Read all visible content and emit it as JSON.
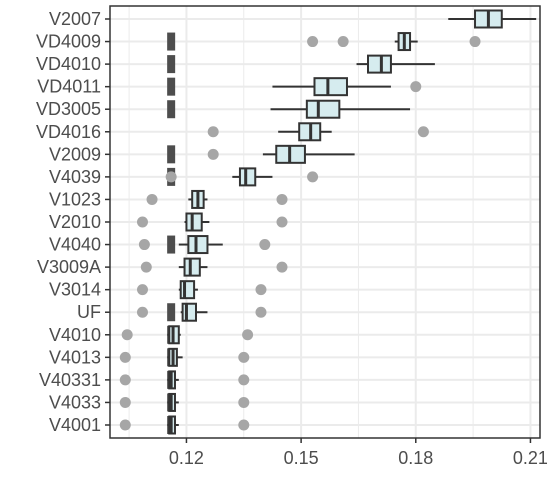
{
  "chart_data": {
    "type": "box",
    "title": "",
    "xlabel": "",
    "ylabel": "",
    "xlim": [
      0.1,
      0.2125
    ],
    "xticks": [
      0.12,
      0.15,
      0.18,
      0.21
    ],
    "xtick_labels": [
      "0.12",
      "0.15",
      "0.18",
      "0.21"
    ],
    "grid": true,
    "legend": "none",
    "colors": {
      "box_fill": "#d6ecef",
      "box_stroke": "#333333",
      "outlier": "#a6a6a6",
      "reference_bar": "#4d4d4d",
      "grid": "#ebebeb",
      "panel_border": "#333333"
    },
    "categories": [
      "V2007",
      "VD4009",
      "VD4010",
      "VD4011",
      "VD3005",
      "VD4016",
      "V2009",
      "V4039",
      "V1023",
      "V2010",
      "V4040",
      "V3009A",
      "V3014",
      "UF",
      "V4010",
      "V4013",
      "V40331",
      "V4033",
      "V4001"
    ],
    "boxes": [
      {
        "label": "V2007",
        "whisker_low": 0.1885,
        "q1": 0.1955,
        "median": 0.199,
        "q3": 0.2025,
        "whisker_high": 0.2115,
        "outliers": []
      },
      {
        "label": "VD4009",
        "whisker_low": 0.1745,
        "q1": 0.1755,
        "median": 0.177,
        "q3": 0.1785,
        "whisker_high": 0.1805,
        "outliers": [
          0.153,
          0.161,
          0.1955
        ]
      },
      {
        "label": "VD4010",
        "whisker_low": 0.1645,
        "q1": 0.1675,
        "median": 0.171,
        "q3": 0.1735,
        "whisker_high": 0.185,
        "outliers": []
      },
      {
        "label": "VD4011",
        "whisker_low": 0.1425,
        "q1": 0.1535,
        "median": 0.157,
        "q3": 0.162,
        "whisker_high": 0.1735,
        "outliers": [
          0.18
        ]
      },
      {
        "label": "VD3005",
        "whisker_low": 0.142,
        "q1": 0.1515,
        "median": 0.1545,
        "q3": 0.16,
        "whisker_high": 0.1785,
        "outliers": []
      },
      {
        "label": "VD4016",
        "whisker_low": 0.144,
        "q1": 0.1495,
        "median": 0.1525,
        "q3": 0.155,
        "whisker_high": 0.158,
        "outliers": [
          0.127,
          0.182
        ]
      },
      {
        "label": "V2009",
        "whisker_low": 0.14,
        "q1": 0.1435,
        "median": 0.147,
        "q3": 0.151,
        "whisker_high": 0.164,
        "outliers": [
          0.127
        ]
      },
      {
        "label": "V4039",
        "whisker_low": 0.132,
        "q1": 0.134,
        "median": 0.1355,
        "q3": 0.138,
        "whisker_high": 0.1425,
        "outliers": [
          0.116,
          0.153
        ]
      },
      {
        "label": "V1023",
        "whisker_low": 0.1205,
        "q1": 0.1215,
        "median": 0.123,
        "q3": 0.1245,
        "whisker_high": 0.1255,
        "outliers": [
          0.111,
          0.145
        ]
      },
      {
        "label": "V2010",
        "whisker_low": 0.1195,
        "q1": 0.12,
        "median": 0.1215,
        "q3": 0.124,
        "whisker_high": 0.126,
        "outliers": [
          0.1085,
          0.145
        ]
      },
      {
        "label": "V4040",
        "whisker_low": 0.118,
        "q1": 0.1205,
        "median": 0.1225,
        "q3": 0.1255,
        "whisker_high": 0.1295,
        "outliers": [
          0.109,
          0.1405
        ]
      },
      {
        "label": "V3009A",
        "whisker_low": 0.118,
        "q1": 0.1195,
        "median": 0.121,
        "q3": 0.1235,
        "whisker_high": 0.1255,
        "outliers": [
          0.1095,
          0.145
        ]
      },
      {
        "label": "V3014",
        "whisker_low": 0.118,
        "q1": 0.1185,
        "median": 0.1195,
        "q3": 0.122,
        "whisker_high": 0.123,
        "outliers": [
          0.1085,
          0.1395
        ]
      },
      {
        "label": "UF",
        "whisker_low": 0.1185,
        "q1": 0.119,
        "median": 0.12,
        "q3": 0.1225,
        "whisker_high": 0.1255,
        "outliers": [
          0.1085,
          0.1395
        ]
      },
      {
        "label": "V4010",
        "whisker_low": 0.115,
        "q1": 0.1155,
        "median": 0.1165,
        "q3": 0.118,
        "whisker_high": 0.1185,
        "outliers": [
          0.1045,
          0.136
        ]
      },
      {
        "label": "V4013",
        "whisker_low": 0.115,
        "q1": 0.1155,
        "median": 0.1165,
        "q3": 0.1175,
        "whisker_high": 0.119,
        "outliers": [
          0.104,
          0.135
        ]
      },
      {
        "label": "V40331",
        "whisker_low": 0.115,
        "q1": 0.1155,
        "median": 0.116,
        "q3": 0.117,
        "whisker_high": 0.118,
        "outliers": [
          0.104,
          0.135
        ]
      },
      {
        "label": "V4033",
        "whisker_low": 0.115,
        "q1": 0.1155,
        "median": 0.116,
        "q3": 0.117,
        "whisker_high": 0.118,
        "outliers": [
          0.104,
          0.135
        ]
      },
      {
        "label": "V4001",
        "whisker_low": 0.115,
        "q1": 0.1155,
        "median": 0.116,
        "q3": 0.117,
        "whisker_high": 0.118,
        "outliers": [
          0.104,
          0.135
        ]
      }
    ],
    "reference_bars": [
      {
        "label": "VD4009",
        "x": 0.116
      },
      {
        "label": "VD4010",
        "x": 0.116
      },
      {
        "label": "VD4011",
        "x": 0.116
      },
      {
        "label": "VD3005",
        "x": 0.116
      },
      {
        "label": "V2009",
        "x": 0.116
      },
      {
        "label": "V4039",
        "x": 0.116
      },
      {
        "label": "V4040",
        "x": 0.116
      },
      {
        "label": "UF",
        "x": 0.116
      },
      {
        "label": "V4010",
        "x": 0.116
      },
      {
        "label": "V4013",
        "x": 0.116
      },
      {
        "label": "V40331",
        "x": 0.116
      },
      {
        "label": "V4033",
        "x": 0.116
      },
      {
        "label": "V4001",
        "x": 0.116
      }
    ]
  }
}
